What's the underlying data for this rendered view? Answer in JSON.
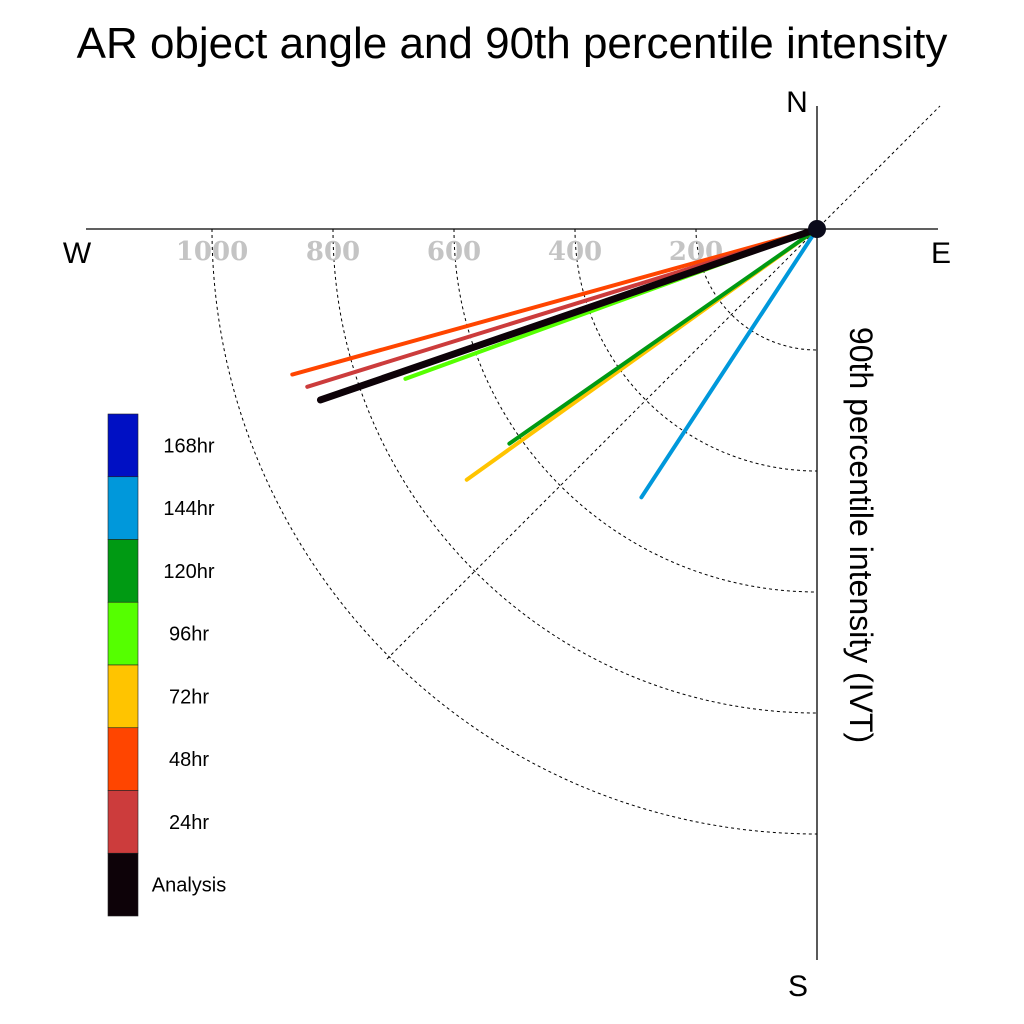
{
  "chart_data": {
    "type": "radial-line",
    "title": "AR object angle and 90th percentile intensity",
    "radial_axis_label": "90th percentile intensity (IVT)",
    "compass_labels": {
      "north": "N",
      "south": "S",
      "east": "E",
      "west": "W"
    },
    "radial_ticks": [
      200,
      400,
      600,
      800,
      1000
    ],
    "radial_range": [
      0,
      1200
    ],
    "angle_convention": "degrees measured from due west, rotating toward south",
    "grid": true,
    "legend_position": "left",
    "series": [
      {
        "name": "Analysis",
        "angle_deg": 19.0,
        "intensity": 868,
        "color": "#0d0208"
      },
      {
        "name": "24hr",
        "angle_deg": 17.2,
        "intensity": 882,
        "color": "#cc3c3c"
      },
      {
        "name": "48hr",
        "angle_deg": 15.5,
        "intensity": 900,
        "color": "#ff4500"
      },
      {
        "name": "72hr",
        "angle_deg": 35.6,
        "intensity": 712,
        "color": "#ffc400"
      },
      {
        "name": "96hr",
        "angle_deg": 20.0,
        "intensity": 724,
        "color": "#55ff00"
      },
      {
        "name": "120hr",
        "angle_deg": 34.9,
        "intensity": 620,
        "color": "#009a13"
      },
      {
        "name": "144hr",
        "angle_deg": 56.8,
        "intensity": 530,
        "color": "#0098db"
      },
      {
        "name": "168hr",
        "angle_deg": null,
        "intensity": null,
        "color": "#0010c4"
      }
    ],
    "legend": [
      {
        "label": "168hr",
        "color": "#0010c4"
      },
      {
        "label": "144hr",
        "color": "#0098db"
      },
      {
        "label": "120hr",
        "color": "#009a13"
      },
      {
        "label": "96hr",
        "color": "#55ff00"
      },
      {
        "label": "72hr",
        "color": "#ffc400"
      },
      {
        "label": "48hr",
        "color": "#ff4500"
      },
      {
        "label": "24hr",
        "color": "#cc3c3c"
      },
      {
        "label": "Analysis",
        "color": "#0d0208"
      }
    ]
  }
}
